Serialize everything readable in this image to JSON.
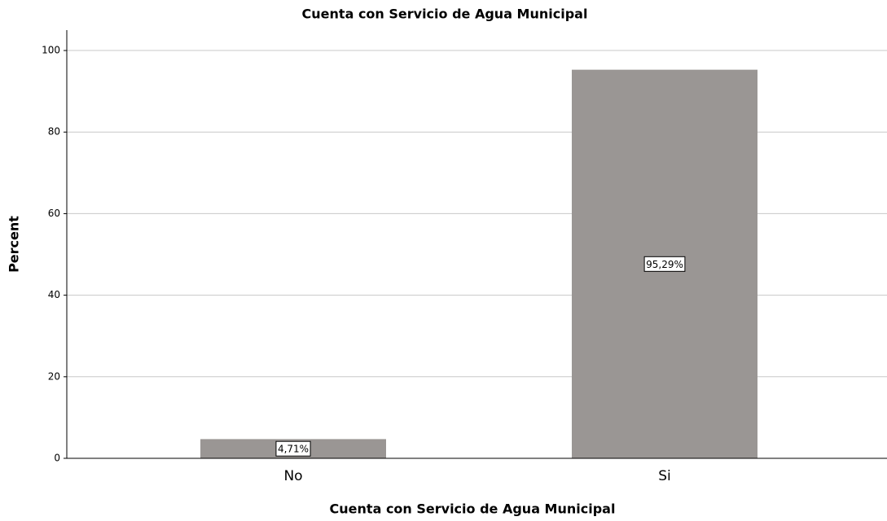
{
  "chart_data": {
    "type": "bar",
    "title": "Cuenta con Servicio de Agua Municipal",
    "x_label": "Cuenta con Servicio de Agua Municipal",
    "y_label": "Percent",
    "categories": [
      "No",
      "Si"
    ],
    "values": [
      4.71,
      95.29
    ],
    "value_labels": [
      "4,71%",
      "95,29%"
    ],
    "color": "#9a9694",
    "ylim": [
      0,
      105
    ],
    "yticks": [
      0,
      20,
      40,
      60,
      80,
      100
    ],
    "grid": true
  }
}
